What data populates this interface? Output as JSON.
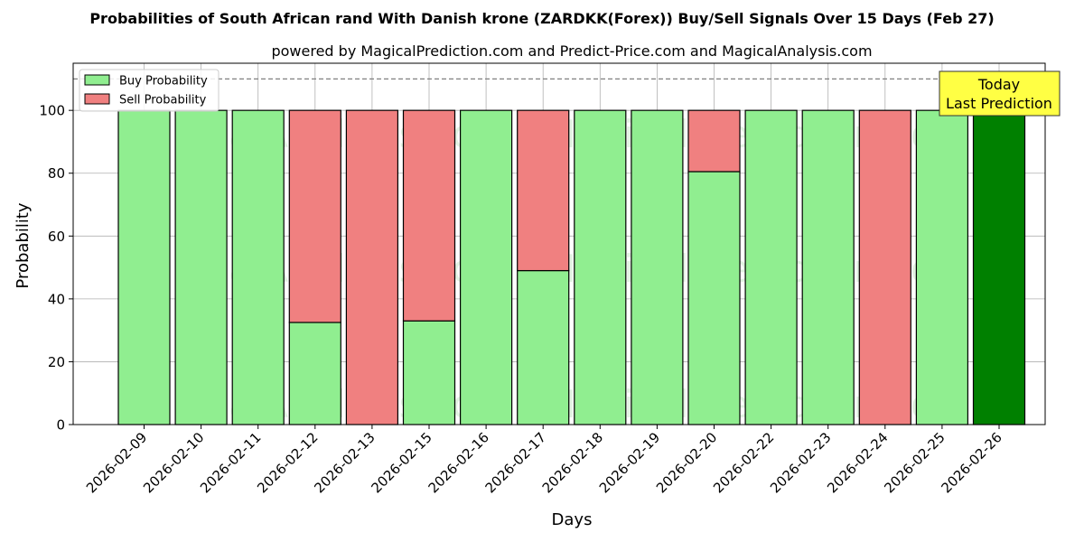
{
  "chart_data": {
    "type": "bar",
    "stacked": true,
    "title": "Probabilities of South African rand With Danish krone (ZARDKK(Forex)) Buy/Sell Signals Over 15 Days (Feb 27)",
    "subtitle": "powered by MagicalPrediction.com and Predict-Price.com and MagicalAnalysis.com",
    "xlabel": "Days",
    "ylabel": "Probability",
    "ylim": [
      0,
      115
    ],
    "yticks": [
      0,
      20,
      40,
      60,
      80,
      100
    ],
    "reference_line": 110,
    "grid": true,
    "legend_position": "top-left",
    "categories": [
      "2026-02-09",
      "2026-02-10",
      "2026-02-11",
      "2026-02-12",
      "2026-02-13",
      "2026-02-15",
      "2026-02-16",
      "2026-02-17",
      "2026-02-18",
      "2026-02-19",
      "2026-02-20",
      "2026-02-22",
      "2026-02-23",
      "2026-02-24",
      "2026-02-25",
      "2026-02-26"
    ],
    "series": [
      {
        "name": "Buy Probability",
        "color": "#90ee90",
        "values": [
          100,
          100,
          100,
          32.5,
          0,
          33,
          100,
          49,
          100,
          100,
          80.5,
          100,
          100,
          0,
          100,
          100
        ]
      },
      {
        "name": "Sell Probability",
        "color": "#f08080",
        "values": [
          0,
          0,
          0,
          67.5,
          100,
          67,
          0,
          51,
          0,
          0,
          19.5,
          0,
          0,
          100,
          0,
          0
        ]
      }
    ],
    "highlight": {
      "index": 15,
      "color": "#008000"
    },
    "annotation": {
      "line1": "Today",
      "line2": "Last Prediction",
      "bg_color": "#ffff44"
    },
    "watermarks": [
      "MagicalAnalysis.com",
      "MagicalPrediction.com"
    ]
  }
}
